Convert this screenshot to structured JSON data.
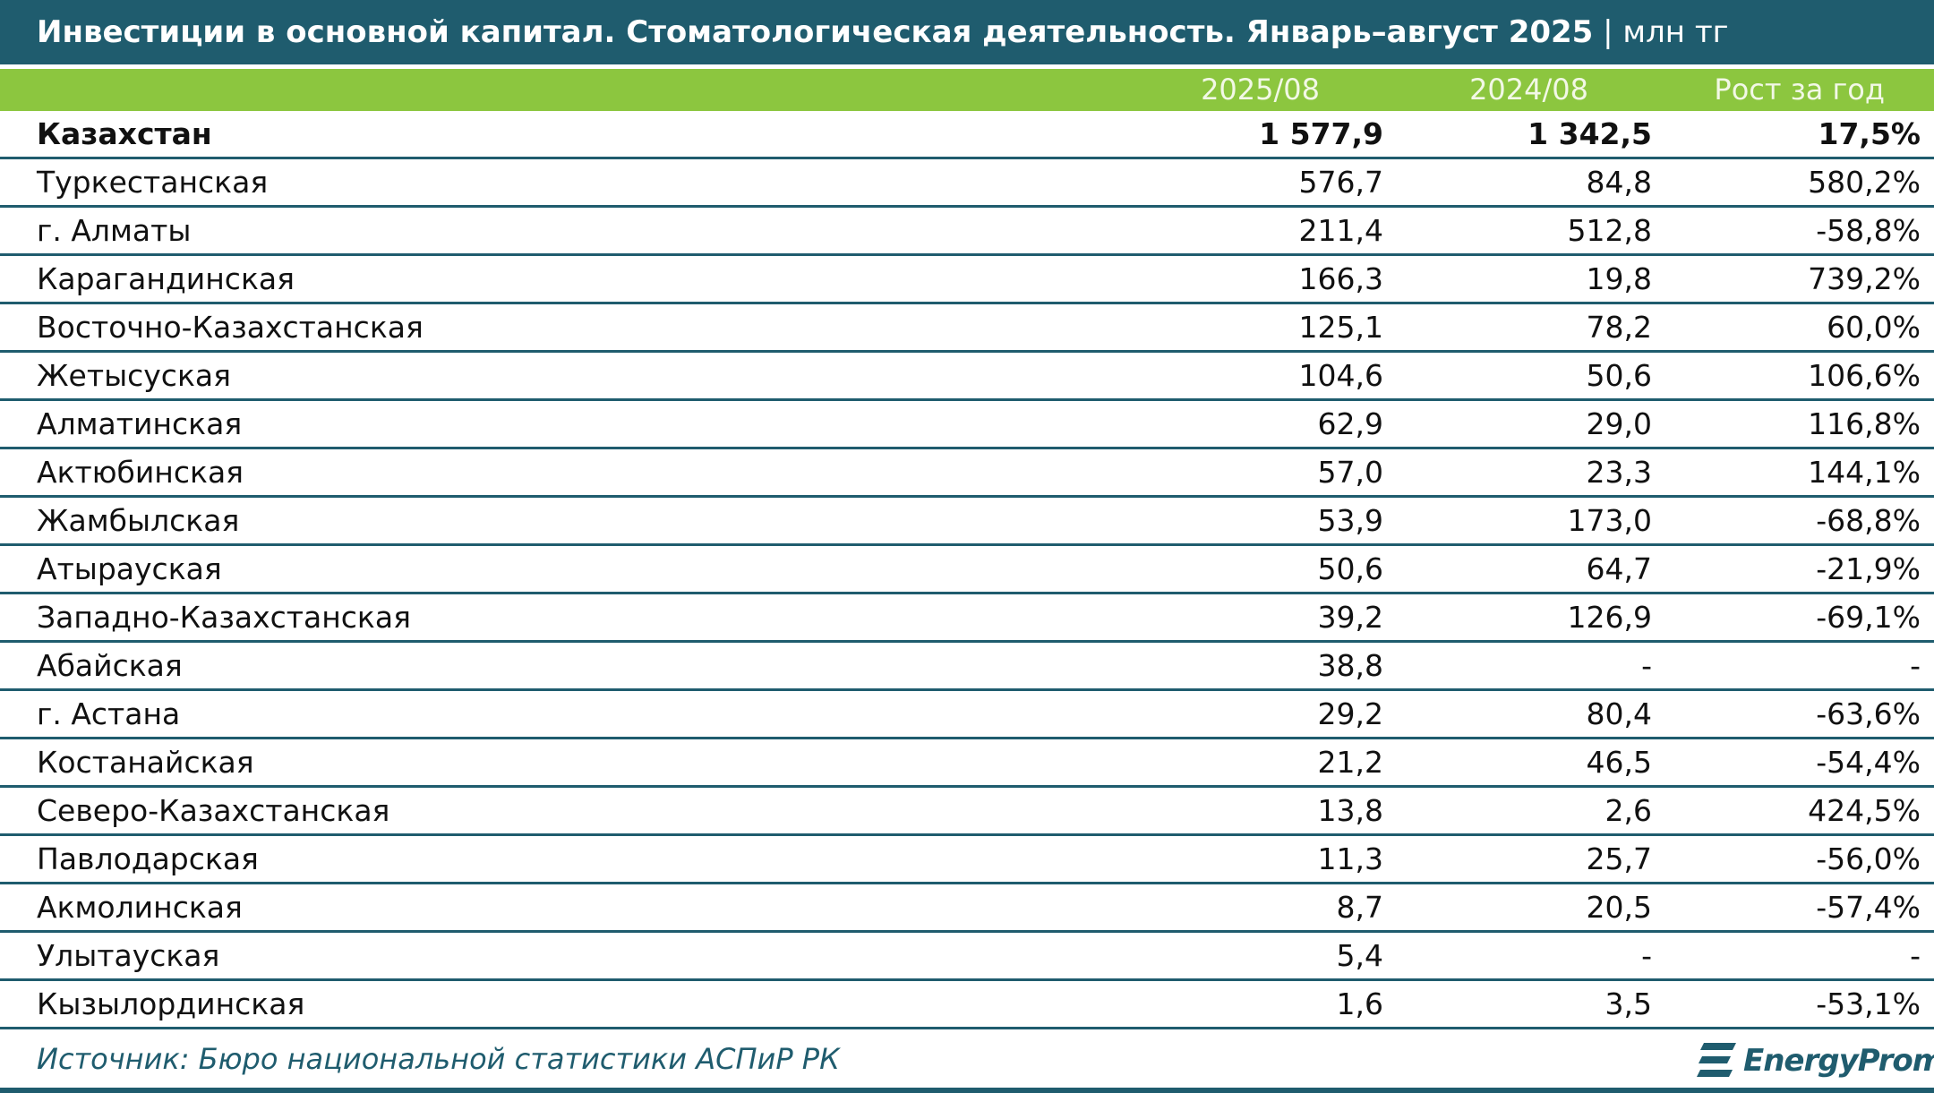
{
  "title": {
    "main": "Инвестиции в основной капитал. Стоматологическая деятельность. Январь–август 2025",
    "unit": " | млн тг"
  },
  "colors": {
    "header_dark": "#1f5c6e",
    "header_green": "#8cc63f",
    "text": "#111111"
  },
  "chart_data": {
    "type": "table",
    "columns": [
      "",
      "2025/08",
      "2024/08",
      "Рост за год"
    ],
    "rows": [
      {
        "region": "Казахстан",
        "v2025": "1 577,9",
        "v2024": "1 342,5",
        "growth": "17,5%",
        "total": true
      },
      {
        "region": "Туркестанская",
        "v2025": "576,7",
        "v2024": "84,8",
        "growth": "580,2%"
      },
      {
        "region": "г. Алматы",
        "v2025": "211,4",
        "v2024": "512,8",
        "growth": "-58,8%"
      },
      {
        "region": "Карагандинская",
        "v2025": "166,3",
        "v2024": "19,8",
        "growth": "739,2%"
      },
      {
        "region": "Восточно-Казахстанская",
        "v2025": "125,1",
        "v2024": "78,2",
        "growth": "60,0%"
      },
      {
        "region": "Жетысуская",
        "v2025": "104,6",
        "v2024": "50,6",
        "growth": "106,6%"
      },
      {
        "region": "Алматинская",
        "v2025": "62,9",
        "v2024": "29,0",
        "growth": "116,8%"
      },
      {
        "region": "Актюбинская",
        "v2025": "57,0",
        "v2024": "23,3",
        "growth": "144,1%"
      },
      {
        "region": "Жамбылская",
        "v2025": "53,9",
        "v2024": "173,0",
        "growth": "-68,8%"
      },
      {
        "region": "Атырауская",
        "v2025": "50,6",
        "v2024": "64,7",
        "growth": "-21,9%"
      },
      {
        "region": "Западно-Казахстанская",
        "v2025": "39,2",
        "v2024": "126,9",
        "growth": "-69,1%"
      },
      {
        "region": "Абайская",
        "v2025": "38,8",
        "v2024": "-",
        "growth": "-"
      },
      {
        "region": "г. Астана",
        "v2025": "29,2",
        "v2024": "80,4",
        "growth": "-63,6%"
      },
      {
        "region": "Костанайская",
        "v2025": "21,2",
        "v2024": "46,5",
        "growth": "-54,4%"
      },
      {
        "region": "Северо-Казахстанская",
        "v2025": "13,8",
        "v2024": "2,6",
        "growth": "424,5%"
      },
      {
        "region": "Павлодарская",
        "v2025": "11,3",
        "v2024": "25,7",
        "growth": "-56,0%"
      },
      {
        "region": "Акмолинская",
        "v2025": "8,7",
        "v2024": "20,5",
        "growth": "-57,4%"
      },
      {
        "region": "Улытауская",
        "v2025": "5,4",
        "v2024": "-",
        "growth": "-"
      },
      {
        "region": "Кызылординская",
        "v2025": "1,6",
        "v2024": "3,5",
        "growth": "-53,1%"
      }
    ]
  },
  "footer": {
    "source": "Источник: Бюро национальной статистики АСПиР РК",
    "logo_text": "EnergyProm",
    "logo_icon": "energyprom-logo-icon"
  }
}
